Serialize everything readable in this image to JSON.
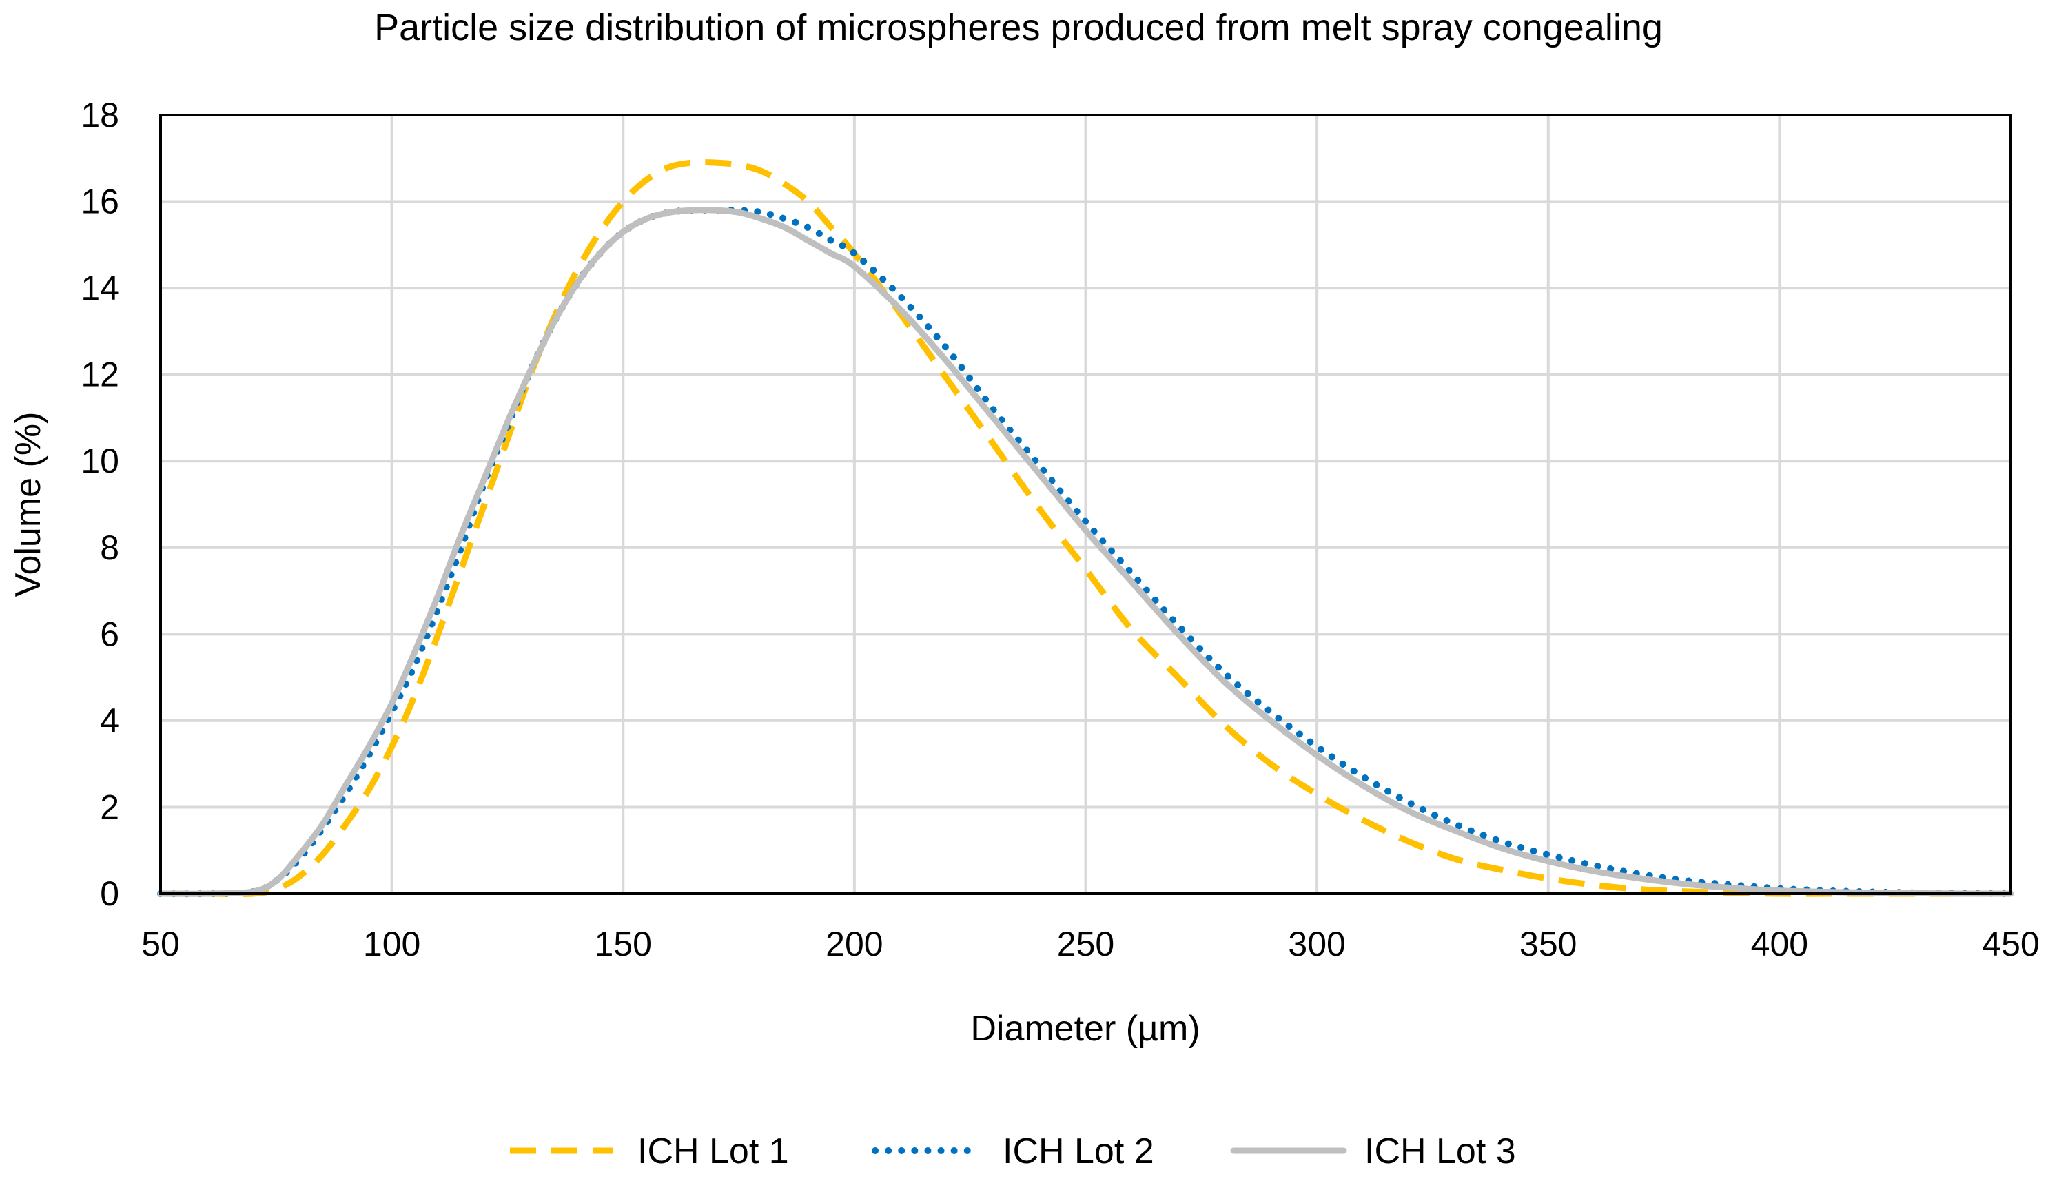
{
  "chart_data": {
    "type": "line",
    "title": "Particle size distribution of microspheres produced from melt spray congealing",
    "xlabel": "Diameter (µm)",
    "ylabel": "Volume (%)",
    "xlim": [
      50,
      450
    ],
    "ylim": [
      0,
      18
    ],
    "x_ticks": [
      50,
      100,
      150,
      200,
      250,
      300,
      350,
      400,
      450
    ],
    "y_ticks": [
      0,
      2,
      4,
      6,
      8,
      10,
      12,
      14,
      16,
      18
    ],
    "grid": true,
    "legend_position": "bottom",
    "series": [
      {
        "name": "ICH Lot 1",
        "color": "#FFC000",
        "style": "dashed",
        "x": [
          50,
          60,
          70,
          75,
          80,
          85,
          90,
          95,
          100,
          105,
          110,
          115,
          120,
          125,
          130,
          135,
          140,
          145,
          150,
          155,
          160,
          165,
          170,
          175,
          180,
          185,
          190,
          195,
          200,
          210,
          220,
          230,
          240,
          250,
          260,
          270,
          280,
          290,
          300,
          310,
          320,
          330,
          340,
          350,
          360,
          370,
          380,
          390,
          400,
          410,
          420,
          430,
          440,
          450
        ],
        "y": [
          0,
          0,
          0,
          0.1,
          0.4,
          0.9,
          1.6,
          2.4,
          3.4,
          4.6,
          6.0,
          7.5,
          9.0,
          10.5,
          12.0,
          13.3,
          14.4,
          15.3,
          16.0,
          16.5,
          16.8,
          16.9,
          16.9,
          16.85,
          16.7,
          16.4,
          16.0,
          15.4,
          14.8,
          13.4,
          11.9,
          10.4,
          8.9,
          7.5,
          6.1,
          5.0,
          3.9,
          3.0,
          2.3,
          1.7,
          1.2,
          0.8,
          0.55,
          0.35,
          0.2,
          0.1,
          0.05,
          0.02,
          0,
          0,
          0,
          0,
          0,
          0
        ]
      },
      {
        "name": "ICH Lot 2",
        "color": "#0070C0",
        "style": "dotted",
        "x": [
          50,
          60,
          70,
          75,
          80,
          85,
          90,
          95,
          100,
          105,
          110,
          115,
          120,
          125,
          130,
          135,
          140,
          145,
          150,
          155,
          160,
          165,
          170,
          175,
          180,
          185,
          190,
          195,
          200,
          210,
          220,
          230,
          240,
          250,
          260,
          270,
          280,
          290,
          300,
          310,
          320,
          330,
          340,
          350,
          360,
          370,
          380,
          390,
          400,
          410,
          420,
          430,
          440,
          450
        ],
        "y": [
          0,
          0,
          0.05,
          0.3,
          0.8,
          1.5,
          2.3,
          3.2,
          4.2,
          5.3,
          6.6,
          8.0,
          9.5,
          10.8,
          12.1,
          13.2,
          14.1,
          14.8,
          15.3,
          15.6,
          15.75,
          15.8,
          15.8,
          15.8,
          15.75,
          15.6,
          15.4,
          15.1,
          14.8,
          13.8,
          12.6,
          11.2,
          9.9,
          8.6,
          7.4,
          6.2,
          5.1,
          4.2,
          3.4,
          2.7,
          2.1,
          1.6,
          1.2,
          0.9,
          0.65,
          0.45,
          0.3,
          0.2,
          0.12,
          0.07,
          0.04,
          0.02,
          0.01,
          0
        ]
      },
      {
        "name": "ICH Lot 3",
        "color": "#BFBFBF",
        "style": "solid",
        "x": [
          50,
          60,
          70,
          75,
          80,
          85,
          90,
          95,
          100,
          105,
          110,
          115,
          120,
          125,
          130,
          135,
          140,
          145,
          150,
          155,
          160,
          165,
          170,
          175,
          180,
          185,
          190,
          195,
          200,
          210,
          220,
          230,
          240,
          250,
          260,
          270,
          280,
          290,
          300,
          310,
          320,
          330,
          340,
          350,
          360,
          370,
          380,
          390,
          400,
          410,
          420,
          430,
          440,
          450
        ],
        "y": [
          0,
          0,
          0.05,
          0.3,
          0.9,
          1.6,
          2.5,
          3.4,
          4.4,
          5.6,
          6.9,
          8.3,
          9.6,
          10.9,
          12.1,
          13.2,
          14.1,
          14.8,
          15.3,
          15.6,
          15.75,
          15.8,
          15.8,
          15.75,
          15.6,
          15.4,
          15.1,
          14.8,
          14.5,
          13.5,
          12.3,
          11.0,
          9.7,
          8.4,
          7.2,
          6.0,
          4.9,
          4.0,
          3.2,
          2.5,
          1.9,
          1.45,
          1.05,
          0.75,
          0.52,
          0.35,
          0.22,
          0.13,
          0.07,
          0.04,
          0.02,
          0.01,
          0,
          0
        ]
      }
    ]
  }
}
